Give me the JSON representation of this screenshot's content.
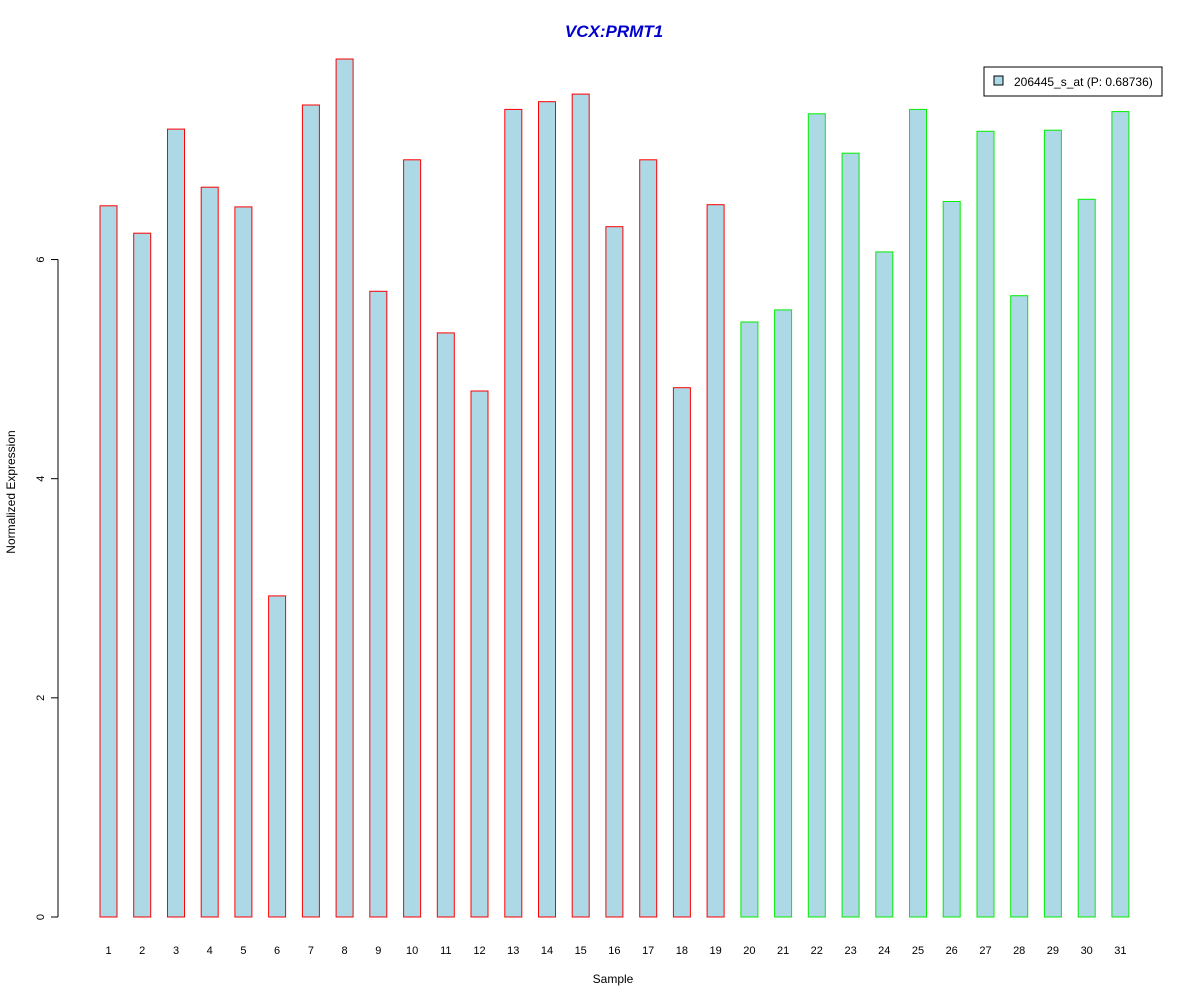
{
  "chart_data": {
    "type": "bar",
    "title": "VCX:PRMT1",
    "xlabel": "Sample",
    "ylabel": "Normalized Expression",
    "categories": [
      "1",
      "2",
      "3",
      "4",
      "5",
      "6",
      "7",
      "8",
      "9",
      "10",
      "11",
      "12",
      "13",
      "14",
      "15",
      "16",
      "17",
      "18",
      "19",
      "20",
      "21",
      "22",
      "23",
      "24",
      "25",
      "26",
      "27",
      "28",
      "29",
      "30",
      "31"
    ],
    "values": [
      6.49,
      6.24,
      7.19,
      6.66,
      6.48,
      2.93,
      7.41,
      7.83,
      5.71,
      6.91,
      5.33,
      4.8,
      7.37,
      7.44,
      7.51,
      6.3,
      6.91,
      4.83,
      6.5,
      5.43,
      5.54,
      7.33,
      6.97,
      6.07,
      7.37,
      6.53,
      7.17,
      5.67,
      7.18,
      6.55,
      7.35
    ],
    "groups": [
      1,
      1,
      1,
      1,
      1,
      1,
      1,
      1,
      1,
      1,
      1,
      1,
      1,
      1,
      1,
      1,
      1,
      1,
      1,
      2,
      2,
      2,
      2,
      2,
      2,
      2,
      2,
      2,
      2,
      2,
      2
    ],
    "group_colors": {
      "1": "#ff0000",
      "2": "#00ee00"
    },
    "bar_fill": "#add8e6",
    "yticks": [
      0,
      2,
      4,
      6
    ],
    "ylim": [
      0,
      7.83
    ],
    "legend": {
      "label": "206445_s_at (P: 0.68736)",
      "position": "top-right",
      "swatch_color": "#add8e6"
    }
  }
}
